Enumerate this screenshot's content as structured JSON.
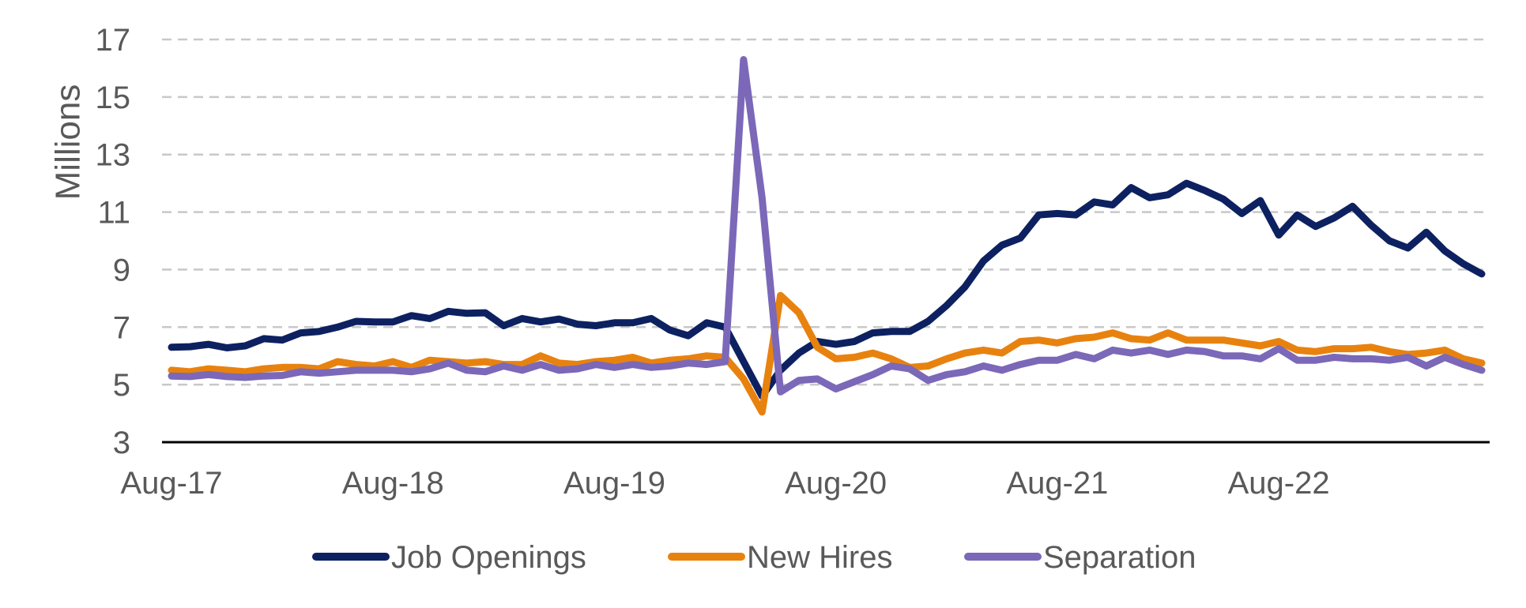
{
  "chart_data": {
    "type": "line",
    "ylabel": "Millions",
    "ylim": [
      3,
      17
    ],
    "yticks": [
      "3",
      "5",
      "7",
      "9",
      "11",
      "13",
      "15",
      "17"
    ],
    "ytick_values": [
      3,
      5,
      7,
      9,
      11,
      13,
      15,
      17
    ],
    "xticks": [
      "Aug-17",
      "Aug-18",
      "Aug-19",
      "Aug-20",
      "Aug-21",
      "Aug-22"
    ],
    "xtick_values": [
      0,
      12,
      24,
      36,
      48,
      60
    ],
    "x_start": "Aug-17",
    "x_end": "Jul-23",
    "grid": true,
    "legend_position": "bottom",
    "series": [
      {
        "name": "Job Openings",
        "color": "#0d2161",
        "values": [
          6.3,
          6.32,
          6.4,
          6.28,
          6.35,
          6.6,
          6.55,
          6.8,
          6.85,
          7.0,
          7.2,
          7.18,
          7.18,
          7.4,
          7.3,
          7.55,
          7.48,
          7.5,
          7.05,
          7.3,
          7.18,
          7.28,
          7.1,
          7.05,
          7.15,
          7.15,
          7.3,
          6.9,
          6.7,
          7.15,
          7.0,
          5.8,
          4.6,
          5.5,
          6.1,
          6.5,
          6.4,
          6.5,
          6.8,
          6.85,
          6.85,
          7.2,
          7.75,
          8.4,
          9.3,
          9.85,
          10.1,
          10.9,
          10.95,
          10.9,
          11.35,
          11.25,
          11.85,
          11.5,
          11.6,
          12.0,
          11.75,
          11.45,
          10.95,
          11.4,
          10.2,
          10.9,
          10.5,
          10.8,
          11.2,
          10.55,
          10.0,
          9.75,
          10.3,
          9.65,
          9.2,
          8.85
        ]
      },
      {
        "name": "New Hires",
        "color": "#e8820f",
        "values": [
          5.5,
          5.45,
          5.55,
          5.5,
          5.45,
          5.55,
          5.6,
          5.6,
          5.55,
          5.8,
          5.7,
          5.65,
          5.8,
          5.6,
          5.85,
          5.8,
          5.75,
          5.8,
          5.7,
          5.7,
          6.0,
          5.75,
          5.7,
          5.8,
          5.85,
          5.95,
          5.75,
          5.85,
          5.9,
          6.0,
          5.95,
          5.2,
          4.05,
          8.1,
          7.5,
          6.3,
          5.9,
          5.95,
          6.1,
          5.9,
          5.6,
          5.65,
          5.9,
          6.1,
          6.2,
          6.1,
          6.5,
          6.55,
          6.45,
          6.6,
          6.65,
          6.8,
          6.6,
          6.55,
          6.8,
          6.55,
          6.55,
          6.55,
          6.45,
          6.35,
          6.5,
          6.2,
          6.15,
          6.25,
          6.25,
          6.3,
          6.15,
          6.05,
          6.1,
          6.2,
          5.9,
          5.75
        ]
      },
      {
        "name": "Separation",
        "color": "#7b68b8",
        "values": [
          5.3,
          5.28,
          5.35,
          5.28,
          5.25,
          5.3,
          5.32,
          5.45,
          5.4,
          5.45,
          5.5,
          5.5,
          5.5,
          5.45,
          5.55,
          5.75,
          5.5,
          5.45,
          5.65,
          5.5,
          5.7,
          5.5,
          5.55,
          5.7,
          5.6,
          5.7,
          5.6,
          5.65,
          5.75,
          5.7,
          5.8,
          16.3,
          11.5,
          4.75,
          5.15,
          5.2,
          4.85,
          5.1,
          5.35,
          5.65,
          5.55,
          5.15,
          5.35,
          5.45,
          5.65,
          5.5,
          5.7,
          5.85,
          5.85,
          6.05,
          5.9,
          6.2,
          6.1,
          6.2,
          6.05,
          6.2,
          6.15,
          6.0,
          6.0,
          5.9,
          6.25,
          5.85,
          5.85,
          5.95,
          5.9,
          5.9,
          5.85,
          5.95,
          5.65,
          5.95,
          5.7,
          5.5
        ]
      }
    ]
  }
}
